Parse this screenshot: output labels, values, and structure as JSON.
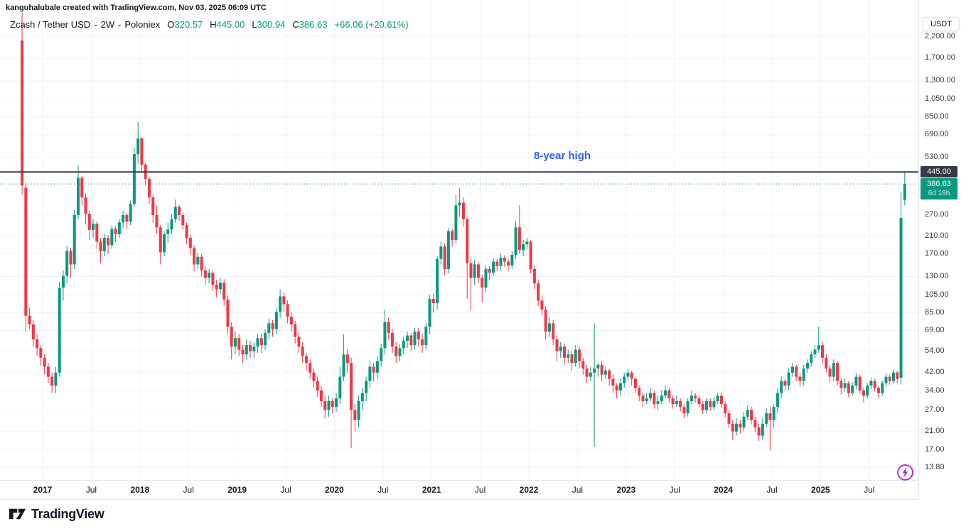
{
  "header": {
    "attribution": "kanguhalubale created with TradingView.com, Nov 03, 2025 06:09 UTC"
  },
  "symbol_row": {
    "name": "Zcash / Tether USD",
    "separator": "-",
    "interval": "2W",
    "exchange": "Poloniex",
    "open_label": "O",
    "open": "320.57",
    "high_label": "H",
    "high": "445.00",
    "low_label": "L",
    "low": "300.94",
    "close_label": "C",
    "close": "386.63",
    "change": "+66.06 (+20.61%)"
  },
  "annotation": {
    "text": "8-year high",
    "price": 445
  },
  "price_axis": {
    "currency_button": "USDT",
    "line_badge": "445.00",
    "price_badge": "386.63",
    "countdown": "6d 18h"
  },
  "footer": {
    "brand": "TradingView"
  },
  "colors": {
    "up": "#089981",
    "down": "#F23645",
    "annotation_blue": "#2962FF",
    "line_dark": "#363A45",
    "badge_dark_bg": "#363A45",
    "badge_green_bg": "#089981",
    "grid": "#F0F3FA",
    "axis_border": "#E0E3EB",
    "axis_text": "#363A45",
    "flash_purple": "#AF22C8"
  },
  "chart_data": {
    "type": "candlestick",
    "title": "Zcash / Tether USD - 2W - Poloniex",
    "interval": "2W",
    "y_scale": "log",
    "ylim": [
      13.8,
      2200
    ],
    "current_price": 386.63,
    "horizontal_line": {
      "price": 445,
      "label": "8-year high"
    },
    "y_axis": {
      "ticks": [
        {
          "value": 2200,
          "label": "2,200.00"
        },
        {
          "value": 1700,
          "label": "1,700.00"
        },
        {
          "value": 1300,
          "label": "1,300.00"
        },
        {
          "value": 1050,
          "label": "1,050.00"
        },
        {
          "value": 850,
          "label": "850.00"
        },
        {
          "value": 690,
          "label": "690.00"
        },
        {
          "value": 530,
          "label": "530.00"
        },
        {
          "value": 270,
          "label": "270.00"
        },
        {
          "value": 210,
          "label": "210.00"
        },
        {
          "value": 170,
          "label": "170.00"
        },
        {
          "value": 130,
          "label": "130.00"
        },
        {
          "value": 105,
          "label": "105.00"
        },
        {
          "value": 85,
          "label": "85.00"
        },
        {
          "value": 69,
          "label": "69.00"
        },
        {
          "value": 54,
          "label": "54.00"
        },
        {
          "value": 42,
          "label": "42.00"
        },
        {
          "value": 34,
          "label": "34.00"
        },
        {
          "value": 27,
          "label": "27.00"
        },
        {
          "value": 21,
          "label": "21.00"
        },
        {
          "value": 17,
          "label": "17.00"
        },
        {
          "value": 13.8,
          "label": "13.80"
        }
      ]
    },
    "x_axis": {
      "ticks": [
        {
          "label": "2017",
          "bold": true
        },
        {
          "label": "Jul",
          "bold": false
        },
        {
          "label": "2018",
          "bold": true
        },
        {
          "label": "Jul",
          "bold": false
        },
        {
          "label": "2019",
          "bold": true
        },
        {
          "label": "Jul",
          "bold": false
        },
        {
          "label": "2020",
          "bold": true
        },
        {
          "label": "Jul",
          "bold": false
        },
        {
          "label": "2021",
          "bold": true
        },
        {
          "label": "Jul",
          "bold": false
        },
        {
          "label": "2022",
          "bold": true
        },
        {
          "label": "Jul",
          "bold": false
        },
        {
          "label": "2023",
          "bold": true
        },
        {
          "label": "Jul",
          "bold": false
        },
        {
          "label": "2024",
          "bold": true
        },
        {
          "label": "Jul",
          "bold": false
        },
        {
          "label": "2025",
          "bold": true
        },
        {
          "label": "Jul",
          "bold": false
        }
      ]
    },
    "candles": [
      [
        2090,
        2900,
        340,
        380
      ],
      [
        370,
        392,
        68,
        82
      ],
      [
        82,
        90,
        70,
        74
      ],
      [
        74,
        78,
        57,
        62
      ],
      [
        62,
        66,
        51,
        56
      ],
      [
        56,
        58,
        46,
        50
      ],
      [
        50,
        52,
        41,
        45
      ],
      [
        45,
        47,
        37,
        40
      ],
      [
        40,
        42,
        33,
        36
      ],
      [
        36,
        45,
        33,
        42
      ],
      [
        42,
        122,
        40,
        114
      ],
      [
        114,
        140,
        98,
        131
      ],
      [
        131,
        186,
        120,
        176
      ],
      [
        176,
        182,
        128,
        150
      ],
      [
        150,
        285,
        142,
        268
      ],
      [
        268,
        480,
        255,
        415
      ],
      [
        415,
        425,
        300,
        330
      ],
      [
        330,
        345,
        240,
        272
      ],
      [
        272,
        282,
        200,
        225
      ],
      [
        225,
        255,
        205,
        242
      ],
      [
        242,
        248,
        180,
        196
      ],
      [
        196,
        205,
        152,
        175
      ],
      [
        175,
        215,
        165,
        205
      ],
      [
        205,
        212,
        170,
        188
      ],
      [
        188,
        237,
        180,
        228
      ],
      [
        228,
        235,
        195,
        214
      ],
      [
        214,
        255,
        205,
        246
      ],
      [
        246,
        282,
        230,
        268
      ],
      [
        268,
        275,
        228,
        248
      ],
      [
        248,
        318,
        238,
        306
      ],
      [
        306,
        590,
        295,
        550
      ],
      [
        550,
        800,
        490,
        660
      ],
      [
        660,
        672,
        450,
        485
      ],
      [
        485,
        495,
        380,
        410
      ],
      [
        410,
        420,
        305,
        330
      ],
      [
        330,
        340,
        245,
        268
      ],
      [
        268,
        300,
        215,
        232
      ],
      [
        232,
        238,
        150,
        173
      ],
      [
        173,
        222,
        165,
        214
      ],
      [
        214,
        245,
        195,
        226
      ],
      [
        226,
        270,
        215,
        255
      ],
      [
        255,
        322,
        245,
        295
      ],
      [
        295,
        302,
        250,
        268
      ],
      [
        268,
        275,
        225,
        238
      ],
      [
        238,
        245,
        190,
        205
      ],
      [
        205,
        212,
        168,
        182
      ],
      [
        182,
        188,
        138,
        150
      ],
      [
        150,
        172,
        142,
        164
      ],
      [
        164,
        170,
        130,
        140
      ],
      [
        140,
        146,
        118,
        128
      ],
      [
        128,
        142,
        120,
        136
      ],
      [
        136,
        140,
        110,
        118
      ],
      [
        118,
        125,
        102,
        112
      ],
      [
        112,
        128,
        106,
        121
      ],
      [
        121,
        126,
        92,
        99
      ],
      [
        99,
        104,
        66,
        72
      ],
      [
        72,
        76,
        49,
        57
      ],
      [
        57,
        68,
        52,
        63
      ],
      [
        63,
        66,
        51,
        55
      ],
      [
        55,
        58,
        47,
        52
      ],
      [
        52,
        62,
        49,
        58
      ],
      [
        58,
        61,
        50,
        54
      ],
      [
        54,
        60,
        50,
        57
      ],
      [
        57,
        66,
        53,
        63
      ],
      [
        63,
        66,
        53,
        58
      ],
      [
        58,
        70,
        55,
        67
      ],
      [
        67,
        79,
        62,
        75
      ],
      [
        75,
        78,
        64,
        70
      ],
      [
        70,
        90,
        66,
        86
      ],
      [
        86,
        112,
        80,
        103
      ],
      [
        103,
        108,
        86,
        94
      ],
      [
        94,
        98,
        75,
        81
      ],
      [
        81,
        85,
        68,
        74
      ],
      [
        74,
        77,
        59,
        64
      ],
      [
        64,
        67,
        53,
        57
      ],
      [
        57,
        60,
        47,
        51
      ],
      [
        51,
        53,
        43,
        47
      ],
      [
        47,
        49,
        39,
        42
      ],
      [
        42,
        44,
        35,
        38
      ],
      [
        38,
        40,
        31.5,
        34
      ],
      [
        34,
        36,
        28,
        30
      ],
      [
        30,
        32,
        24.5,
        27
      ],
      [
        27,
        32,
        25,
        30
      ],
      [
        30,
        31,
        26,
        28
      ],
      [
        28,
        33,
        26.5,
        31
      ],
      [
        31,
        45,
        29,
        40
      ],
      [
        40,
        66,
        38,
        52
      ],
      [
        52,
        55,
        42,
        47
      ],
      [
        47,
        50,
        17.3,
        27
      ],
      [
        27,
        29,
        21,
        24
      ],
      [
        24,
        32,
        22,
        30
      ],
      [
        30,
        35,
        27,
        33
      ],
      [
        33,
        40,
        30,
        38
      ],
      [
        38,
        48,
        35,
        45
      ],
      [
        45,
        47,
        38,
        42
      ],
      [
        42,
        51,
        39,
        48
      ],
      [
        48,
        59,
        45,
        56
      ],
      [
        56,
        88,
        52,
        76
      ],
      [
        76,
        80,
        62,
        67
      ],
      [
        67,
        70,
        53,
        57
      ],
      [
        57,
        60,
        47,
        51
      ],
      [
        51,
        59,
        48,
        56
      ],
      [
        56,
        64,
        52,
        61
      ],
      [
        61,
        68,
        56,
        65
      ],
      [
        65,
        67,
        54,
        58
      ],
      [
        58,
        71,
        55,
        68
      ],
      [
        68,
        71,
        57,
        62
      ],
      [
        62,
        66,
        53,
        58
      ],
      [
        58,
        75,
        55,
        72
      ],
      [
        72,
        105,
        66,
        100
      ],
      [
        100,
        106,
        85,
        95
      ],
      [
        95,
        165,
        88,
        160
      ],
      [
        160,
        196,
        150,
        185
      ],
      [
        185,
        192,
        132,
        142
      ],
      [
        142,
        230,
        135,
        222
      ],
      [
        222,
        228,
        185,
        200
      ],
      [
        200,
        340,
        192,
        300
      ],
      [
        300,
        368,
        262,
        310
      ],
      [
        310,
        330,
        235,
        255
      ],
      [
        255,
        262,
        100,
        152
      ],
      [
        152,
        160,
        87,
        128
      ],
      [
        128,
        158,
        118,
        150
      ],
      [
        150,
        155,
        120,
        128
      ],
      [
        128,
        133,
        96,
        114
      ],
      [
        114,
        148,
        108,
        142
      ],
      [
        142,
        147,
        125,
        136
      ],
      [
        136,
        162,
        130,
        155
      ],
      [
        155,
        160,
        138,
        147
      ],
      [
        147,
        170,
        140,
        162
      ],
      [
        162,
        167,
        146,
        155
      ],
      [
        155,
        160,
        138,
        148
      ],
      [
        148,
        175,
        142,
        168
      ],
      [
        168,
        250,
        160,
        232
      ],
      [
        232,
        302,
        170,
        178
      ],
      [
        178,
        200,
        165,
        190
      ],
      [
        190,
        205,
        180,
        196
      ],
      [
        196,
        200,
        135,
        142
      ],
      [
        142,
        148,
        112,
        120
      ],
      [
        120,
        125,
        92,
        98
      ],
      [
        98,
        104,
        82,
        88
      ],
      [
        88,
        92,
        62,
        68
      ],
      [
        68,
        80,
        64,
        75
      ],
      [
        75,
        78,
        58,
        62
      ],
      [
        62,
        65,
        48,
        54
      ],
      [
        54,
        60,
        50,
        57
      ],
      [
        57,
        59,
        46,
        50
      ],
      [
        50,
        55,
        47,
        52
      ],
      [
        52,
        54,
        43,
        47
      ],
      [
        47,
        58,
        45,
        55
      ],
      [
        55,
        57,
        44,
        48
      ],
      [
        48,
        50,
        41,
        44
      ],
      [
        44,
        46,
        37,
        40
      ],
      [
        40,
        45,
        38,
        42
      ],
      [
        42,
        75,
        17.5,
        44
      ],
      [
        44,
        47,
        40,
        46
      ],
      [
        46,
        48,
        38,
        41
      ],
      [
        41,
        45,
        39,
        43
      ],
      [
        43,
        44,
        36,
        39
      ],
      [
        39,
        41,
        33,
        36
      ],
      [
        36,
        37,
        31,
        34
      ],
      [
        34,
        39,
        32,
        37
      ],
      [
        37,
        42,
        35,
        40
      ],
      [
        40,
        44,
        38,
        42
      ],
      [
        42,
        43,
        36,
        39
      ],
      [
        39,
        40,
        33,
        35
      ],
      [
        35,
        36,
        30,
        32
      ],
      [
        32,
        33,
        28,
        30
      ],
      [
        30,
        33,
        29,
        31
      ],
      [
        31,
        35,
        30,
        33
      ],
      [
        33,
        34,
        27.5,
        29
      ],
      [
        29,
        32,
        27,
        30
      ],
      [
        30,
        34,
        29,
        32
      ],
      [
        32,
        36,
        31,
        34
      ],
      [
        34,
        35,
        29.5,
        31
      ],
      [
        31,
        32,
        27.5,
        29
      ],
      [
        29,
        32,
        28,
        30
      ],
      [
        30,
        31,
        26.5,
        28
      ],
      [
        28,
        29,
        24.5,
        26
      ],
      [
        26,
        31,
        25,
        30
      ],
      [
        30,
        34,
        29,
        32
      ],
      [
        32,
        33,
        29.5,
        31
      ],
      [
        31,
        32,
        27.8,
        29
      ],
      [
        29,
        30,
        25.8,
        27
      ],
      [
        27,
        31,
        26,
        30
      ],
      [
        30,
        31,
        26.8,
        28
      ],
      [
        28,
        31.5,
        27,
        30
      ],
      [
        30,
        33,
        29,
        32
      ],
      [
        32,
        33,
        27.6,
        29
      ],
      [
        29,
        30,
        24.8,
        26
      ],
      [
        26,
        27,
        21.8,
        23
      ],
      [
        23,
        24,
        19,
        21
      ],
      [
        21,
        24.5,
        20,
        23
      ],
      [
        23,
        24,
        20.5,
        22
      ],
      [
        22,
        26.5,
        21,
        25
      ],
      [
        25,
        28.5,
        24,
        27
      ],
      [
        27,
        28,
        22.8,
        24
      ],
      [
        24,
        25,
        20.8,
        22
      ],
      [
        22,
        23,
        18.8,
        20
      ],
      [
        20,
        24.5,
        19,
        23
      ],
      [
        23,
        27.5,
        22,
        26
      ],
      [
        26,
        28,
        16.8,
        24
      ],
      [
        24,
        29,
        22,
        28
      ],
      [
        28,
        35,
        26,
        33
      ],
      [
        33,
        40,
        31,
        38
      ],
      [
        38,
        39,
        34,
        36
      ],
      [
        36,
        44,
        34,
        42
      ],
      [
        42,
        47,
        40,
        45
      ],
      [
        45,
        46,
        38,
        40
      ],
      [
        40,
        42,
        35.5,
        38
      ],
      [
        38,
        46,
        36,
        44
      ],
      [
        44,
        49,
        42,
        47
      ],
      [
        47,
        54,
        45,
        52
      ],
      [
        52,
        58,
        50,
        55
      ],
      [
        55,
        72,
        53,
        58
      ],
      [
        58,
        60,
        47,
        50
      ],
      [
        50,
        52,
        42,
        44
      ],
      [
        44,
        46,
        37.5,
        40
      ],
      [
        40,
        49,
        38,
        47
      ],
      [
        47,
        48,
        36,
        38
      ],
      [
        38,
        39,
        32.5,
        35
      ],
      [
        35,
        39,
        33.5,
        37
      ],
      [
        37,
        38,
        31.5,
        33
      ],
      [
        33,
        37.5,
        32,
        36
      ],
      [
        36,
        41.5,
        34.5,
        40
      ],
      [
        40,
        41,
        32.8,
        34
      ],
      [
        34,
        35,
        29.5,
        32
      ],
      [
        32,
        37,
        31,
        36
      ],
      [
        36,
        39.5,
        34.5,
        38
      ],
      [
        38,
        39,
        33.5,
        35
      ],
      [
        35,
        36,
        31.2,
        33
      ],
      [
        33,
        38,
        32,
        37
      ],
      [
        37,
        41.5,
        35.5,
        40
      ],
      [
        40,
        41,
        36.5,
        38
      ],
      [
        38,
        43.5,
        36.8,
        42
      ],
      [
        42,
        43,
        37,
        39
      ],
      [
        39.5,
        352,
        36.5,
        259
      ],
      [
        320.57,
        445,
        300.94,
        386.63
      ]
    ]
  }
}
